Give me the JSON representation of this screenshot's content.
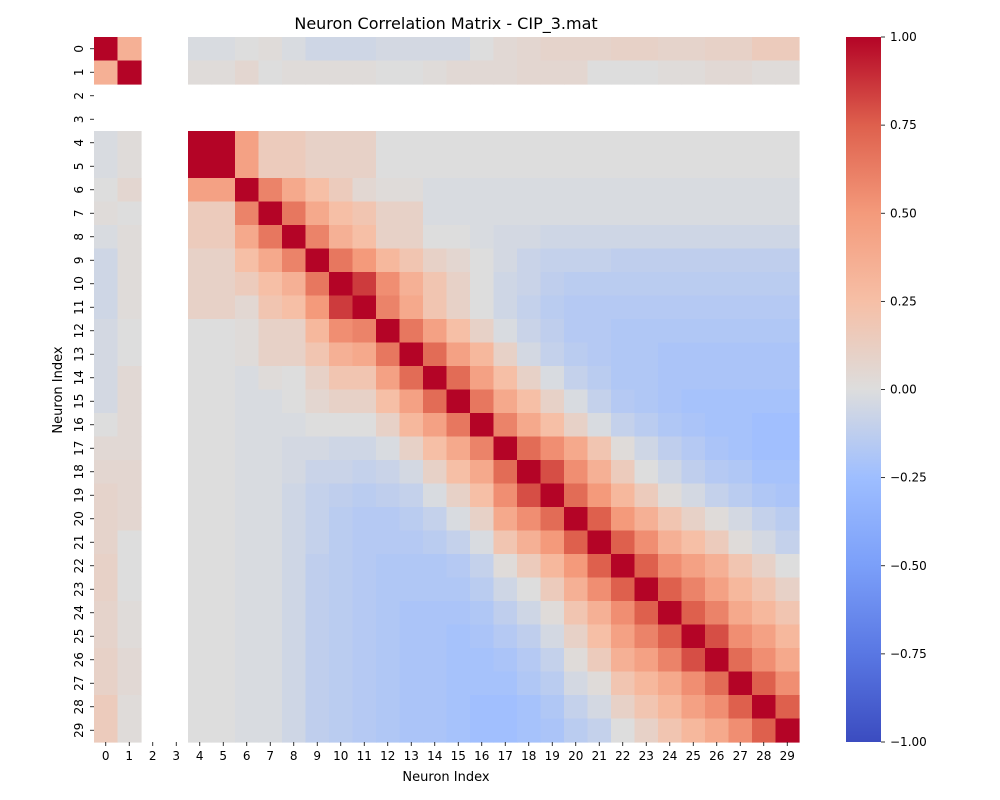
{
  "chart_data": {
    "type": "heatmap",
    "title": "Neuron Correlation Matrix - CIP_3.mat",
    "xlabel": "Neuron Index",
    "ylabel": "Neuron Index",
    "x_ticks": [
      "0",
      "1",
      "2",
      "3",
      "4",
      "5",
      "6",
      "7",
      "8",
      "9",
      "10",
      "11",
      "12",
      "13",
      "14",
      "15",
      "16",
      "17",
      "18",
      "19",
      "20",
      "21",
      "22",
      "23",
      "24",
      "25",
      "26",
      "27",
      "28",
      "29"
    ],
    "y_ticks": [
      "0",
      "1",
      "2",
      "3",
      "4",
      "5",
      "6",
      "7",
      "8",
      "9",
      "10",
      "11",
      "12",
      "13",
      "14",
      "15",
      "16",
      "17",
      "18",
      "19",
      "20",
      "21",
      "22",
      "23",
      "24",
      "25",
      "26",
      "27",
      "28",
      "29"
    ],
    "n": 30,
    "missing_neurons": [
      2,
      3
    ],
    "colormap": "coolwarm",
    "vmin": -1.0,
    "vmax": 1.0,
    "colorbar_ticks": [
      "1.00",
      "0.75",
      "0.50",
      "0.25",
      "0.00",
      "−0.25",
      "−0.50",
      "−0.75",
      "−1.00"
    ],
    "colorbar_values": [
      1.0,
      0.75,
      0.5,
      0.25,
      0.0,
      -0.25,
      -0.5,
      -0.75,
      -1.0
    ],
    "rows": [
      [
        1.0,
        0.35,
        null,
        null,
        -0.02,
        -0.02,
        0.0,
        0.02,
        -0.02,
        -0.06,
        -0.06,
        -0.06,
        -0.04,
        -0.04,
        -0.04,
        -0.04,
        0.0,
        0.04,
        0.06,
        0.08,
        0.08,
        0.08,
        0.1,
        0.1,
        0.08,
        0.08,
        0.1,
        0.1,
        0.15,
        0.15
      ],
      [
        0.35,
        1.0,
        null,
        null,
        0.02,
        0.02,
        0.06,
        0.0,
        0.02,
        0.02,
        0.02,
        0.02,
        0.0,
        0.0,
        0.02,
        0.04,
        0.04,
        0.04,
        0.06,
        0.06,
        0.06,
        0.0,
        0.0,
        0.0,
        0.02,
        0.02,
        0.04,
        0.04,
        0.02,
        0.02
      ],
      [
        null,
        null,
        null,
        null,
        null,
        null,
        null,
        null,
        null,
        null,
        null,
        null,
        null,
        null,
        null,
        null,
        null,
        null,
        null,
        null,
        null,
        null,
        null,
        null,
        null,
        null,
        null,
        null,
        null,
        null
      ],
      [
        null,
        null,
        null,
        null,
        null,
        null,
        null,
        null,
        null,
        null,
        null,
        null,
        null,
        null,
        null,
        null,
        null,
        null,
        null,
        null,
        null,
        null,
        null,
        null,
        null,
        null,
        null,
        null,
        null,
        null
      ],
      [
        -0.02,
        0.02,
        null,
        null,
        1.0,
        1.0,
        0.45,
        0.15,
        0.15,
        0.1,
        0.1,
        0.1,
        0.0,
        0.0,
        0.0,
        0.0,
        0.0,
        0.0,
        0.0,
        0.0,
        0.0,
        0.0,
        0.0,
        0.0,
        0.0,
        0.0,
        0.0,
        0.0,
        0.0,
        0.0
      ],
      [
        -0.02,
        0.02,
        null,
        null,
        1.0,
        1.0,
        0.45,
        0.15,
        0.15,
        0.1,
        0.1,
        0.1,
        0.0,
        0.0,
        0.0,
        0.0,
        0.0,
        0.0,
        0.0,
        0.0,
        0.0,
        0.0,
        0.0,
        0.0,
        0.0,
        0.0,
        0.0,
        0.0,
        0.0,
        0.0
      ],
      [
        0.0,
        0.06,
        null,
        null,
        0.45,
        0.45,
        1.0,
        0.6,
        0.4,
        0.25,
        0.15,
        0.05,
        0.02,
        0.02,
        -0.02,
        -0.02,
        -0.02,
        -0.02,
        -0.02,
        -0.02,
        -0.02,
        -0.02,
        -0.02,
        -0.02,
        -0.02,
        -0.02,
        -0.02,
        -0.02,
        -0.02,
        -0.02
      ],
      [
        0.02,
        0.0,
        null,
        null,
        0.15,
        0.15,
        0.6,
        1.0,
        0.65,
        0.4,
        0.25,
        0.2,
        0.1,
        0.1,
        -0.02,
        -0.02,
        -0.02,
        -0.02,
        -0.02,
        -0.02,
        -0.02,
        -0.02,
        -0.02,
        -0.02,
        -0.02,
        -0.02,
        -0.02,
        -0.02,
        -0.02,
        -0.02
      ],
      [
        -0.02,
        0.02,
        null,
        null,
        0.15,
        0.15,
        0.4,
        0.65,
        1.0,
        0.6,
        0.35,
        0.25,
        0.1,
        0.1,
        0.0,
        0.0,
        -0.02,
        -0.04,
        -0.04,
        -0.06,
        -0.06,
        -0.06,
        -0.06,
        -0.06,
        -0.06,
        -0.06,
        -0.06,
        -0.06,
        -0.06,
        -0.06
      ],
      [
        -0.06,
        0.02,
        null,
        null,
        0.1,
        0.1,
        0.25,
        0.4,
        0.6,
        1.0,
        0.65,
        0.5,
        0.3,
        0.2,
        0.1,
        0.06,
        0.0,
        -0.04,
        -0.08,
        -0.1,
        -0.1,
        -0.1,
        -0.12,
        -0.12,
        -0.12,
        -0.12,
        -0.12,
        -0.12,
        -0.12,
        -0.12
      ],
      [
        -0.06,
        0.02,
        null,
        null,
        0.1,
        0.1,
        0.15,
        0.25,
        0.35,
        0.65,
        1.0,
        0.85,
        0.55,
        0.35,
        0.2,
        0.1,
        0.0,
        -0.06,
        -0.08,
        -0.12,
        -0.14,
        -0.14,
        -0.14,
        -0.14,
        -0.14,
        -0.14,
        -0.14,
        -0.14,
        -0.14,
        -0.14
      ],
      [
        -0.06,
        0.02,
        null,
        null,
        0.1,
        0.1,
        0.05,
        0.2,
        0.25,
        0.5,
        0.85,
        1.0,
        0.6,
        0.4,
        0.2,
        0.1,
        0.0,
        -0.06,
        -0.1,
        -0.14,
        -0.16,
        -0.16,
        -0.16,
        -0.16,
        -0.16,
        -0.16,
        -0.16,
        -0.16,
        -0.16,
        -0.16
      ],
      [
        -0.04,
        0.0,
        null,
        null,
        0.0,
        0.0,
        0.02,
        0.1,
        0.1,
        0.3,
        0.55,
        0.6,
        1.0,
        0.65,
        0.45,
        0.25,
        0.1,
        -0.02,
        -0.08,
        -0.12,
        -0.16,
        -0.16,
        -0.18,
        -0.18,
        -0.18,
        -0.18,
        -0.18,
        -0.18,
        -0.18,
        -0.18
      ],
      [
        -0.04,
        0.0,
        null,
        null,
        0.0,
        0.0,
        0.02,
        0.1,
        0.1,
        0.2,
        0.35,
        0.4,
        0.65,
        1.0,
        0.7,
        0.45,
        0.3,
        0.1,
        -0.04,
        -0.1,
        -0.14,
        -0.16,
        -0.18,
        -0.18,
        -0.2,
        -0.2,
        -0.2,
        -0.2,
        -0.2,
        -0.2
      ],
      [
        -0.04,
        0.04,
        null,
        null,
        0.0,
        0.0,
        -0.02,
        0.02,
        0.0,
        0.1,
        0.2,
        0.2,
        0.45,
        0.7,
        1.0,
        0.7,
        0.45,
        0.25,
        0.1,
        -0.02,
        -0.1,
        -0.14,
        -0.18,
        -0.18,
        -0.2,
        -0.2,
        -0.2,
        -0.2,
        -0.2,
        -0.2
      ],
      [
        -0.04,
        0.04,
        null,
        null,
        0.0,
        0.0,
        -0.02,
        -0.02,
        0.0,
        0.06,
        0.1,
        0.1,
        0.25,
        0.45,
        0.7,
        1.0,
        0.65,
        0.4,
        0.25,
        0.1,
        -0.02,
        -0.1,
        -0.16,
        -0.18,
        -0.2,
        -0.22,
        -0.22,
        -0.22,
        -0.22,
        -0.22
      ],
      [
        0.0,
        0.04,
        null,
        null,
        0.0,
        0.0,
        -0.02,
        -0.02,
        -0.02,
        0.0,
        0.0,
        0.0,
        0.1,
        0.3,
        0.45,
        0.65,
        1.0,
        0.6,
        0.4,
        0.25,
        0.1,
        -0.02,
        -0.1,
        -0.14,
        -0.18,
        -0.2,
        -0.22,
        -0.22,
        -0.24,
        -0.24
      ],
      [
        0.04,
        0.04,
        null,
        null,
        0.0,
        0.0,
        -0.02,
        -0.02,
        -0.04,
        -0.04,
        -0.06,
        -0.06,
        -0.02,
        0.1,
        0.25,
        0.4,
        0.6,
        1.0,
        0.7,
        0.55,
        0.4,
        0.2,
        0.02,
        -0.06,
        -0.12,
        -0.16,
        -0.2,
        -0.22,
        -0.24,
        -0.24
      ],
      [
        0.06,
        0.06,
        null,
        null,
        0.0,
        0.0,
        -0.02,
        -0.02,
        -0.04,
        -0.08,
        -0.08,
        -0.1,
        -0.08,
        -0.04,
        0.1,
        0.25,
        0.4,
        0.7,
        1.0,
        0.8,
        0.55,
        0.35,
        0.15,
        0.0,
        -0.06,
        -0.12,
        -0.16,
        -0.18,
        -0.22,
        -0.22
      ],
      [
        0.08,
        0.06,
        null,
        null,
        0.0,
        0.0,
        -0.02,
        -0.02,
        -0.06,
        -0.1,
        -0.12,
        -0.14,
        -0.12,
        -0.1,
        -0.02,
        0.1,
        0.25,
        0.55,
        0.8,
        1.0,
        0.7,
        0.5,
        0.3,
        0.15,
        0.02,
        -0.04,
        -0.1,
        -0.14,
        -0.18,
        -0.2
      ],
      [
        0.08,
        0.06,
        null,
        null,
        0.0,
        0.0,
        -0.02,
        -0.02,
        -0.06,
        -0.1,
        -0.14,
        -0.16,
        -0.16,
        -0.14,
        -0.1,
        -0.02,
        0.1,
        0.4,
        0.55,
        0.7,
        1.0,
        0.75,
        0.5,
        0.35,
        0.2,
        0.1,
        0.02,
        -0.04,
        -0.1,
        -0.14
      ],
      [
        0.08,
        0.0,
        null,
        null,
        0.0,
        0.0,
        -0.02,
        -0.02,
        -0.06,
        -0.1,
        -0.14,
        -0.16,
        -0.16,
        -0.16,
        -0.14,
        -0.1,
        -0.02,
        0.2,
        0.35,
        0.5,
        0.75,
        1.0,
        0.75,
        0.55,
        0.35,
        0.25,
        0.15,
        0.02,
        -0.04,
        -0.1
      ],
      [
        0.1,
        0.0,
        null,
        null,
        0.0,
        0.0,
        -0.02,
        -0.02,
        -0.06,
        -0.12,
        -0.14,
        -0.16,
        -0.18,
        -0.18,
        -0.18,
        -0.16,
        -0.1,
        0.02,
        0.15,
        0.3,
        0.5,
        0.75,
        1.0,
        0.75,
        0.55,
        0.45,
        0.35,
        0.2,
        0.1,
        0.0
      ],
      [
        0.1,
        0.0,
        null,
        null,
        0.0,
        0.0,
        -0.02,
        -0.02,
        -0.06,
        -0.12,
        -0.14,
        -0.16,
        -0.18,
        -0.18,
        -0.18,
        -0.18,
        -0.14,
        -0.06,
        0.0,
        0.15,
        0.35,
        0.55,
        0.75,
        1.0,
        0.75,
        0.6,
        0.45,
        0.3,
        0.2,
        0.1
      ],
      [
        0.08,
        0.02,
        null,
        null,
        0.0,
        0.0,
        -0.02,
        -0.02,
        -0.06,
        -0.12,
        -0.14,
        -0.16,
        -0.18,
        -0.2,
        -0.2,
        -0.2,
        -0.18,
        -0.12,
        -0.06,
        0.02,
        0.2,
        0.35,
        0.55,
        0.75,
        1.0,
        0.75,
        0.6,
        0.4,
        0.3,
        0.2
      ],
      [
        0.08,
        0.02,
        null,
        null,
        0.0,
        0.0,
        -0.02,
        -0.02,
        -0.06,
        -0.12,
        -0.14,
        -0.16,
        -0.18,
        -0.2,
        -0.2,
        -0.22,
        -0.2,
        -0.16,
        -0.12,
        -0.04,
        0.1,
        0.25,
        0.45,
        0.6,
        0.75,
        1.0,
        0.8,
        0.55,
        0.45,
        0.3
      ],
      [
        0.1,
        0.04,
        null,
        null,
        0.0,
        0.0,
        -0.02,
        -0.02,
        -0.06,
        -0.12,
        -0.14,
        -0.16,
        -0.18,
        -0.2,
        -0.2,
        -0.22,
        -0.22,
        -0.2,
        -0.16,
        -0.1,
        0.02,
        0.15,
        0.35,
        0.45,
        0.6,
        0.8,
        1.0,
        0.7,
        0.55,
        0.4
      ],
      [
        0.1,
        0.04,
        null,
        null,
        0.0,
        0.0,
        -0.02,
        -0.02,
        -0.06,
        -0.12,
        -0.14,
        -0.16,
        -0.18,
        -0.2,
        -0.2,
        -0.22,
        -0.22,
        -0.22,
        -0.18,
        -0.14,
        -0.04,
        0.02,
        0.2,
        0.3,
        0.4,
        0.55,
        0.7,
        1.0,
        0.75,
        0.55
      ],
      [
        0.15,
        0.02,
        null,
        null,
        0.0,
        0.0,
        -0.02,
        -0.02,
        -0.06,
        -0.12,
        -0.14,
        -0.16,
        -0.18,
        -0.2,
        -0.2,
        -0.22,
        -0.24,
        -0.24,
        -0.22,
        -0.18,
        -0.1,
        -0.04,
        0.1,
        0.2,
        0.3,
        0.45,
        0.55,
        0.75,
        1.0,
        0.75
      ],
      [
        0.15,
        0.02,
        null,
        null,
        0.0,
        0.0,
        -0.02,
        -0.02,
        -0.06,
        -0.12,
        -0.14,
        -0.16,
        -0.18,
        -0.2,
        -0.2,
        -0.22,
        -0.24,
        -0.24,
        -0.22,
        -0.2,
        -0.14,
        -0.1,
        0.0,
        0.1,
        0.2,
        0.3,
        0.4,
        0.55,
        0.75,
        1.0
      ]
    ]
  }
}
